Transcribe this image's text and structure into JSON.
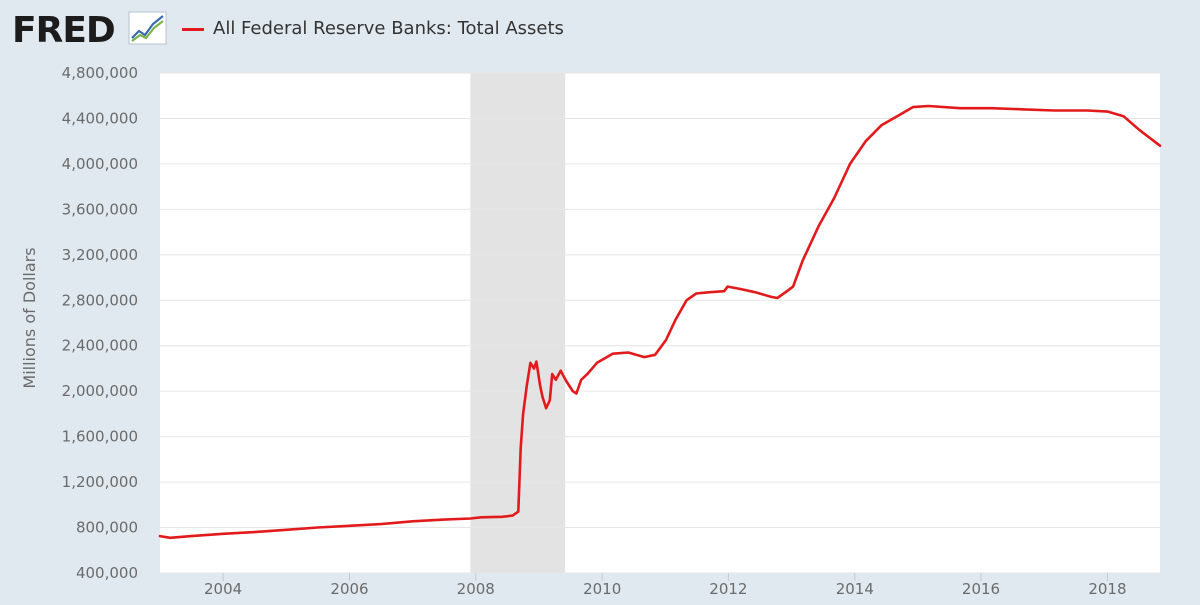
{
  "header": {
    "logo_text": "FRED",
    "logo_icon": "fred-chart-logo-icon"
  },
  "colors": {
    "series": "#e31a1c",
    "background": "#e1e9f0",
    "plot": "#ffffff",
    "grid": "#e6e6e6",
    "recession": "#e3e3e3"
  },
  "chart_data": {
    "type": "line",
    "title": "",
    "xlabel": "",
    "ylabel": "Millions of Dollars",
    "xlim": [
      "2003-01-01",
      "2018-11-01"
    ],
    "ylim": [
      400000,
      4800000
    ],
    "grid": true,
    "legend_placement": "top-left",
    "x_ticks": [
      "2004",
      "2006",
      "2008",
      "2010",
      "2012",
      "2014",
      "2016",
      "2018"
    ],
    "y_ticks": [
      "400,000",
      "800,000",
      "1,200,000",
      "1,600,000",
      "2,000,000",
      "2,400,000",
      "2,800,000",
      "3,200,000",
      "3,600,000",
      "4,000,000",
      "4,400,000",
      "4,800,000"
    ],
    "recessions": [
      {
        "start": "2007-12-01",
        "end": "2009-06-01"
      }
    ],
    "series": [
      {
        "name": "All Federal Reserve Banks: Total Assets",
        "x": [
          "2003-01-01",
          "2003-03-01",
          "2003-07-01",
          "2004-01-01",
          "2004-07-01",
          "2005-01-01",
          "2005-07-01",
          "2006-01-01",
          "2006-07-01",
          "2007-01-01",
          "2007-07-01",
          "2007-12-01",
          "2008-02-01",
          "2008-06-01",
          "2008-08-01",
          "2008-09-03",
          "2008-09-17",
          "2008-10-01",
          "2008-10-22",
          "2008-11-12",
          "2008-12-03",
          "2008-12-17",
          "2009-01-07",
          "2009-01-21",
          "2009-02-11",
          "2009-03-04",
          "2009-03-18",
          "2009-04-08",
          "2009-05-06",
          "2009-06-03",
          "2009-06-24",
          "2009-07-15",
          "2009-08-05",
          "2009-09-02",
          "2009-10-07",
          "2009-12-02",
          "2010-03-03",
          "2010-06-02",
          "2010-09-01",
          "2010-11-03",
          "2011-01-05",
          "2011-03-02",
          "2011-05-04",
          "2011-06-29",
          "2011-09-07",
          "2011-12-07",
          "2011-12-28",
          "2012-03-07",
          "2012-06-06",
          "2012-09-05",
          "2012-10-10",
          "2012-12-05",
          "2013-01-09",
          "2013-03-06",
          "2013-06-05",
          "2013-09-04",
          "2013-12-04",
          "2014-03-05",
          "2014-06-04",
          "2014-09-03",
          "2014-12-03",
          "2015-03-04",
          "2015-09-02",
          "2016-03-02",
          "2016-09-07",
          "2017-03-01",
          "2017-09-06",
          "2018-01-03",
          "2018-04-04",
          "2018-07-04",
          "2018-11-01"
        ],
        "values": [
          725000,
          710000,
          725000,
          745000,
          760000,
          780000,
          800000,
          815000,
          830000,
          855000,
          870000,
          880000,
          890000,
          895000,
          905000,
          940000,
          1500000,
          1800000,
          2050000,
          2250000,
          2200000,
          2260000,
          2050000,
          1950000,
          1850000,
          1920000,
          2150000,
          2100000,
          2180000,
          2100000,
          2050000,
          2000000,
          1980000,
          2100000,
          2150000,
          2250000,
          2330000,
          2340000,
          2300000,
          2320000,
          2450000,
          2630000,
          2800000,
          2860000,
          2870000,
          2880000,
          2920000,
          2900000,
          2870000,
          2830000,
          2820000,
          2880000,
          2920000,
          3150000,
          3450000,
          3700000,
          4000000,
          4200000,
          4340000,
          4420000,
          4500000,
          4510000,
          4490000,
          4490000,
          4480000,
          4470000,
          4470000,
          4460000,
          4420000,
          4300000,
          4160000
        ]
      }
    ]
  }
}
